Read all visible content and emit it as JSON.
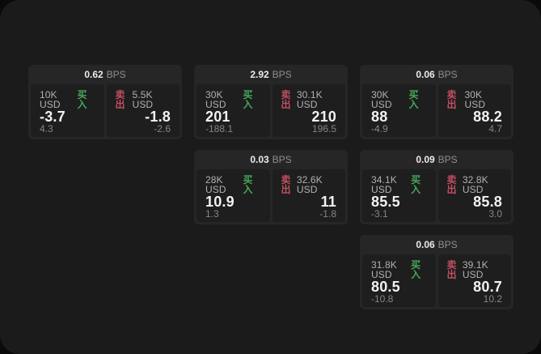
{
  "labels": {
    "bps_unit": "BPS",
    "buy": "买入",
    "sell": "卖出"
  },
  "colors": {
    "buy": "#45a95c",
    "sell": "#c24f63",
    "card_bg": "#262626",
    "panel_bg": "#1e1e1e",
    "board_bg": "#1b1b1b"
  },
  "cards": [
    {
      "col": 1,
      "row": 1,
      "bps": "0.62",
      "buy": {
        "amount": "10K USD",
        "price": "-3.7",
        "delta": "4.3"
      },
      "sell": {
        "amount": "5.5K USD",
        "price": "-1.8",
        "delta": "-2.6"
      }
    },
    {
      "col": 2,
      "row": 1,
      "bps": "2.92",
      "buy": {
        "amount": "30K USD",
        "price": "201",
        "delta": "-188.1"
      },
      "sell": {
        "amount": "30.1K USD",
        "price": "210",
        "delta": "196.5"
      }
    },
    {
      "col": 3,
      "row": 1,
      "bps": "0.06",
      "buy": {
        "amount": "30K USD",
        "price": "88",
        "delta": "-4.9"
      },
      "sell": {
        "amount": "30K USD",
        "price": "88.2",
        "delta": "4.7"
      }
    },
    {
      "col": 2,
      "row": 2,
      "bps": "0.03",
      "buy": {
        "amount": "28K USD",
        "price": "10.9",
        "delta": "1.3"
      },
      "sell": {
        "amount": "32.6K USD",
        "price": "11",
        "delta": "-1.8"
      }
    },
    {
      "col": 3,
      "row": 2,
      "bps": "0.09",
      "buy": {
        "amount": "34.1K USD",
        "price": "85.5",
        "delta": "-3.1"
      },
      "sell": {
        "amount": "32.8K USD",
        "price": "85.8",
        "delta": "3.0"
      }
    },
    {
      "col": 3,
      "row": 3,
      "bps": "0.06",
      "buy": {
        "amount": "31.8K USD",
        "price": "80.5",
        "delta": "-10.8"
      },
      "sell": {
        "amount": "39.1K USD",
        "price": "80.7",
        "delta": "10.2"
      }
    }
  ]
}
